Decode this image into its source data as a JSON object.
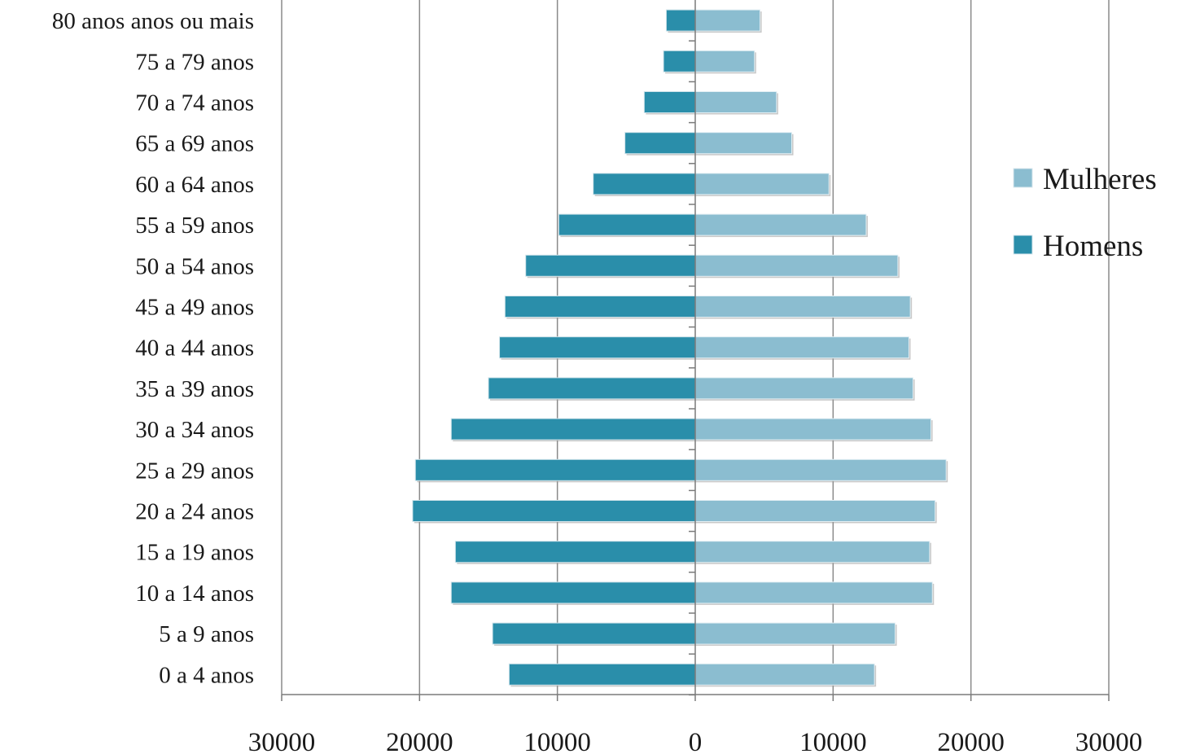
{
  "chart_data": {
    "type": "bar",
    "orientation": "horizontal",
    "layout": "population-pyramid",
    "categories": [
      "0 a 4 anos",
      "5 a 9 anos",
      "10 a 14 anos",
      "15 a 19 anos",
      "20 a 24 anos",
      "25 a 29 anos",
      "30 a 34 anos",
      "35 a 39 anos",
      "40 a 44 anos",
      "45 a 49 anos",
      "50 a 54 anos",
      "55 a 59 anos",
      "60 a 64 anos",
      "65 a 69 anos",
      "70 a 74 anos",
      "75 a 79 anos",
      "80 anos anos ou mais"
    ],
    "series": [
      {
        "name": "Mulheres",
        "color": "#8bbdd0",
        "side": "right",
        "values": [
          13000,
          14500,
          17200,
          17000,
          17400,
          18200,
          17100,
          15800,
          15500,
          15600,
          14700,
          12400,
          9700,
          7000,
          5900,
          4300,
          4700
        ]
      },
      {
        "name": "Homens",
        "color": "#2a8eaa",
        "side": "left",
        "values": [
          13500,
          14700,
          17700,
          17400,
          20500,
          20300,
          17700,
          15000,
          14200,
          13800,
          12300,
          9900,
          7400,
          5100,
          3700,
          2300,
          2100
        ]
      }
    ],
    "xlim": [
      -30000,
      30000
    ],
    "xticks": [
      -30000,
      -20000,
      -10000,
      0,
      10000,
      20000,
      30000
    ],
    "xtick_labels": [
      "30000",
      "20000",
      "10000",
      "0",
      "10000",
      "20000",
      "30000"
    ],
    "grid": "vertical",
    "legend": "right",
    "legend_order": [
      "Mulheres",
      "Homens"
    ],
    "title": "",
    "xlabel": "",
    "ylabel": ""
  }
}
